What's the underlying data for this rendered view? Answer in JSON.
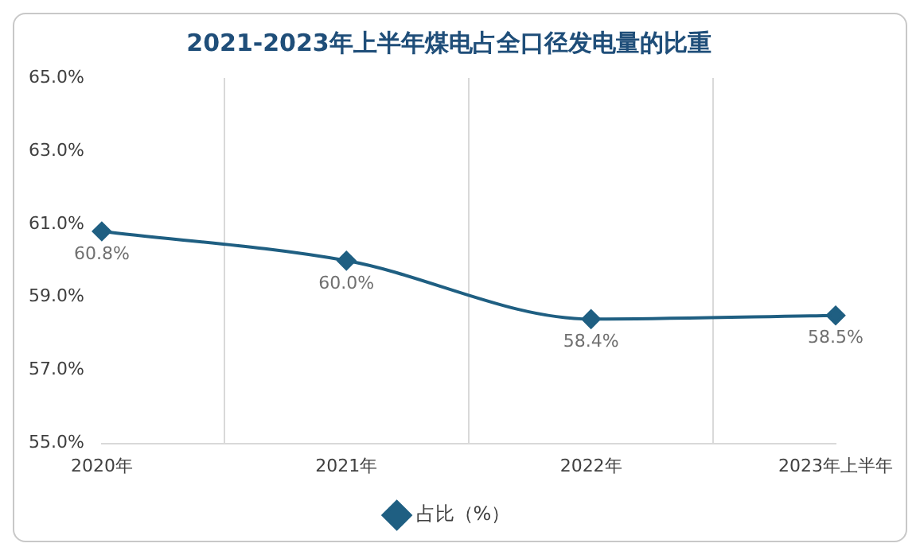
{
  "chart_data": {
    "type": "line",
    "title": "2021-2023年上半年煤电占全口径发电量的比重",
    "categories": [
      "2020年",
      "2021年",
      "2022年",
      "2023年上半年"
    ],
    "series": [
      {
        "name": "占比（%）",
        "color": "#1f5f82",
        "values": [
          60.8,
          60.0,
          58.4,
          58.5
        ],
        "value_labels": [
          "60.8%",
          "60.0%",
          "58.4%",
          "58.5%"
        ]
      }
    ],
    "ylim": [
      55,
      65
    ],
    "yticks": [
      {
        "value": 55,
        "label": "55.0%"
      },
      {
        "value": 57,
        "label": "57.0%"
      },
      {
        "value": 59,
        "label": "59.0%"
      },
      {
        "value": 61,
        "label": "61.0%"
      },
      {
        "value": 63,
        "label": "63.0%"
      },
      {
        "value": 65,
        "label": "65.0%"
      }
    ],
    "grid": "x",
    "legend": "bottom",
    "marker": "diamond",
    "line_style": "solid"
  }
}
